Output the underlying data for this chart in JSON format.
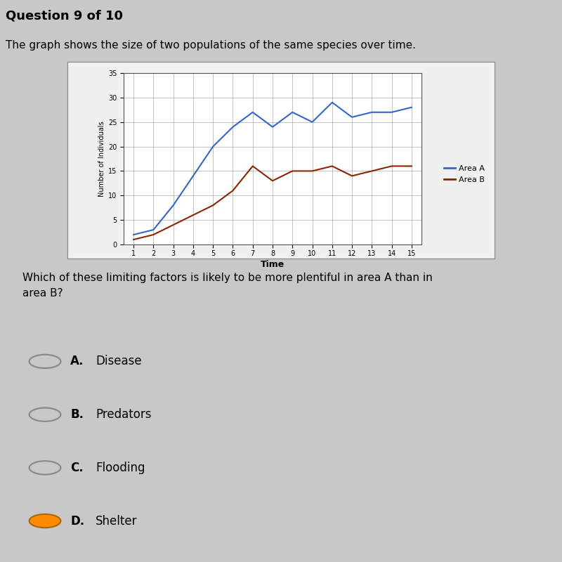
{
  "header_text": "Question 9 of 10",
  "subtitle": "The graph shows the size of two populations of the same species over time.",
  "xlabel": "Time",
  "ylabel": "Number of Individuals",
  "ylim": [
    0,
    35
  ],
  "xlim": [
    0.5,
    15.5
  ],
  "yticks": [
    0,
    5,
    10,
    15,
    20,
    25,
    30,
    35
  ],
  "xticks": [
    1,
    2,
    3,
    4,
    5,
    6,
    7,
    8,
    9,
    10,
    11,
    12,
    13,
    14,
    15
  ],
  "area_a": {
    "x": [
      1,
      2,
      3,
      4,
      5,
      6,
      7,
      8,
      9,
      10,
      11,
      12,
      13,
      14,
      15
    ],
    "y": [
      2,
      3,
      8,
      14,
      20,
      24,
      27,
      24,
      27,
      25,
      29,
      26,
      27,
      27,
      28
    ],
    "color": "#3366CC",
    "label": "Area A",
    "linewidth": 1.5
  },
  "area_b": {
    "x": [
      1,
      2,
      3,
      4,
      5,
      6,
      7,
      8,
      9,
      10,
      11,
      12,
      13,
      14,
      15
    ],
    "y": [
      1,
      2,
      4,
      6,
      8,
      11,
      16,
      13,
      15,
      15,
      16,
      14,
      15,
      16,
      16
    ],
    "color": "#8B2500",
    "label": "Area B",
    "linewidth": 1.5
  },
  "bg_color": "#c8c8c8",
  "chart_bg": "#ffffff",
  "chart_border_bg": "#f0f0f0",
  "grid_color": "#aaaaaa",
  "header_bg": "#d8d8d8",
  "question_text": "Which of these limiting factors is likely to be more plentiful in area A than in\narea B?",
  "options": [
    "A.",
    "B.",
    "C.",
    "D."
  ],
  "option_labels": [
    "Disease",
    "Predators",
    "Flooding",
    "Shelter"
  ],
  "selected_option": 3,
  "option_circle_color": "#888888",
  "selected_fill": "#FF8C00",
  "tick_fontsize": 7,
  "ylabel_fontsize": 7,
  "xlabel_fontsize": 9,
  "legend_fontsize": 8
}
